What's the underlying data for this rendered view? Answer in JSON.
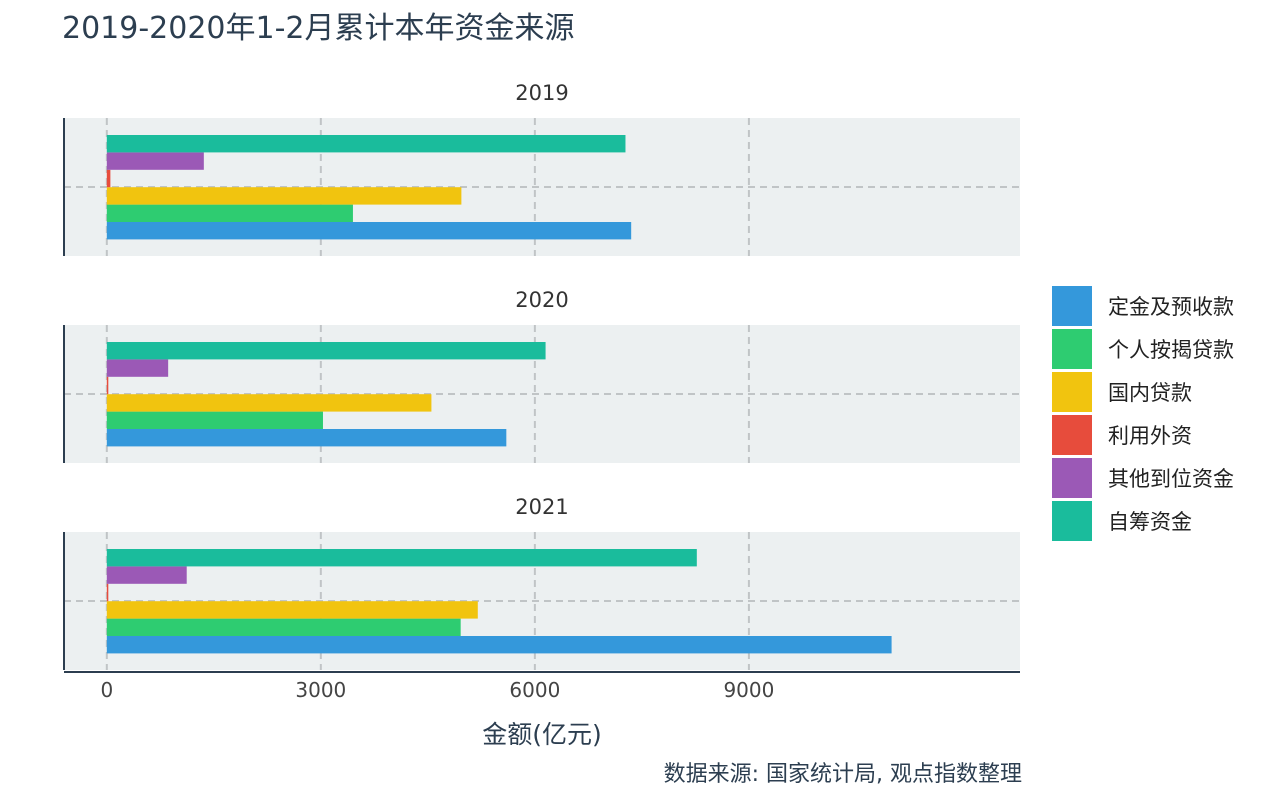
{
  "chart_data": {
    "type": "bar",
    "orientation": "horizontal",
    "title": "2019-2020年1-2月累计本年资金来源",
    "xlabel": "金额(亿元)",
    "caption": "数据来源: 国家统计局, 观点指数整理",
    "xlim": [
      -600,
      12800
    ],
    "xticks": [
      0,
      3000,
      6000,
      9000
    ],
    "grid": true,
    "legend_position": "right",
    "panels": [
      "2019",
      "2020",
      "2021"
    ],
    "series": [
      {
        "name": "定金及预收款",
        "color": "#3498db",
        "values": [
          7350,
          5600,
          11000
        ]
      },
      {
        "name": "个人按揭贷款",
        "color": "#2ecc71",
        "values": [
          3450,
          3030,
          4960
        ]
      },
      {
        "name": "国内贷款",
        "color": "#f1c40f",
        "values": [
          4970,
          4550,
          5200
        ]
      },
      {
        "name": "利用外资",
        "color": "#e74c3c",
        "values": [
          50,
          10,
          10
        ]
      },
      {
        "name": "其他到位资金",
        "color": "#9b59b6",
        "values": [
          1360,
          860,
          1120
        ]
      },
      {
        "name": "自筹资金",
        "color": "#1abc9c",
        "values": [
          7270,
          6150,
          8270
        ]
      }
    ]
  }
}
